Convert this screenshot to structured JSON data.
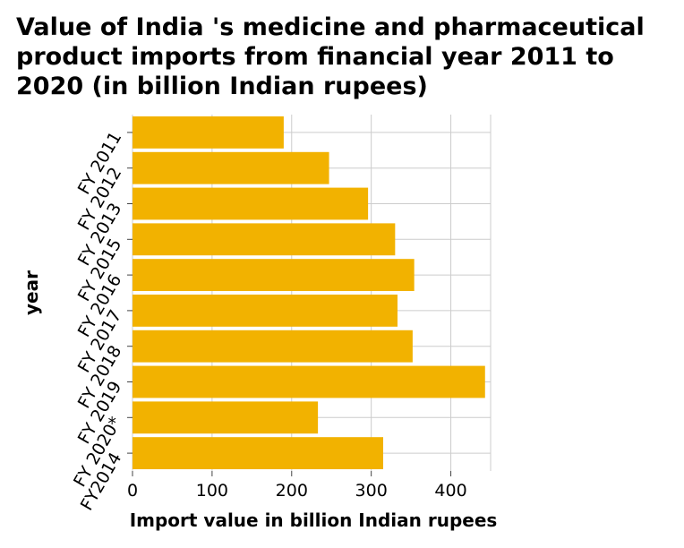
{
  "chart_data": {
    "type": "bar",
    "orientation": "horizontal",
    "title": "Value of India 's medicine and pharmaceutical product imports from financial year 2011 to 2020 (in billion Indian rupees)",
    "xlabel": "Import value in billion Indian rupees",
    "ylabel": "year",
    "categories": [
      "FY 2011",
      "FY 2012",
      "FY 2013",
      "FY 2015",
      "FY 2016",
      "FY 2017",
      "FY 2018",
      "FY 2019",
      "FY 2020*",
      "FY2014"
    ],
    "values": [
      190,
      247,
      296,
      330,
      354,
      333,
      352,
      443,
      233,
      315
    ],
    "xlim": [
      0,
      450
    ],
    "xticks": [
      0,
      100,
      200,
      300,
      400
    ],
    "grid": true,
    "bar_color": "#f2b200"
  }
}
